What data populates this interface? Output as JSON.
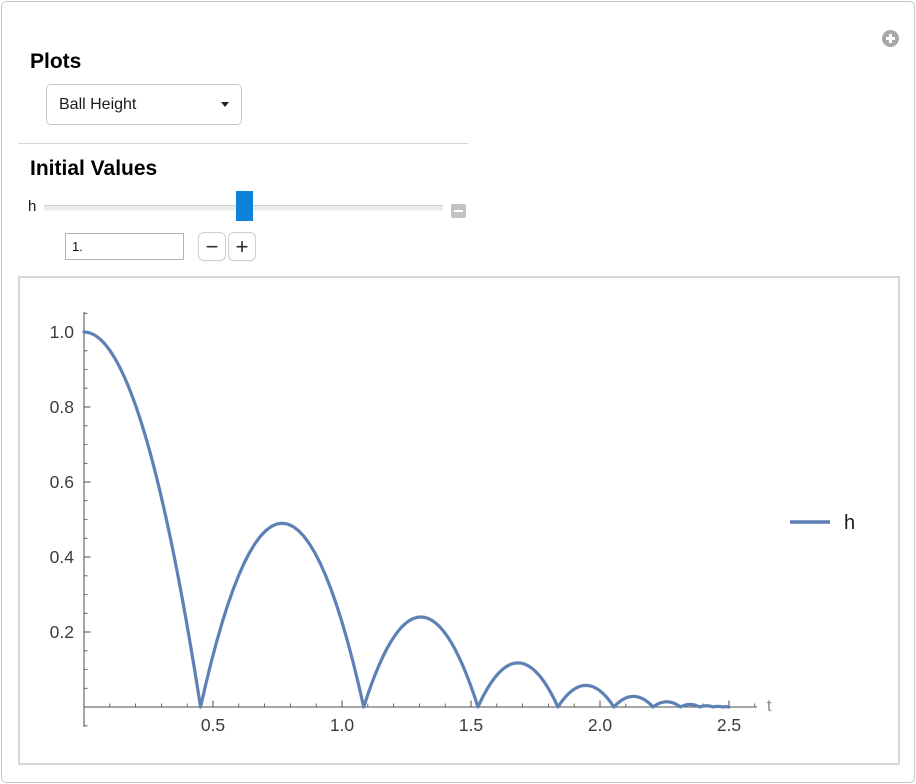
{
  "window": {
    "plus_icon": "plus-circle-options"
  },
  "plots_section": {
    "title": "Plots",
    "dropdown_value": "Ball Height"
  },
  "initial_values_section": {
    "title": "Initial Values",
    "slider": {
      "label": "h",
      "thumb_color": "#0c82d8",
      "collapse_icon": "minus"
    },
    "field_value": "1.",
    "stepper": {
      "decrement_label": "−",
      "increment_label": "+"
    }
  },
  "chart_data": {
    "type": "line",
    "title": "",
    "xlabel": "t",
    "ylabel": "",
    "xlim": [
      0,
      2.6
    ],
    "ylim": [
      -0.05,
      1.05
    ],
    "x_ticks": [
      0.5,
      1.0,
      1.5,
      2.0,
      2.5
    ],
    "y_ticks": [
      0.2,
      0.4,
      0.6,
      0.8,
      1.0
    ],
    "x_minor_step": 0.1,
    "y_minor_step": 0.05,
    "grid": false,
    "legend_position": "right-outside",
    "colors": {
      "axis": "#4d4d4d",
      "tick_label": "#3c3c3c",
      "axis_label": "#8c8c8c",
      "series": "#5e81b5"
    },
    "series": [
      {
        "name": "h",
        "color": "#5e81b5",
        "description": "bouncing ball height: parabolic free-fall arcs with decaying peaks",
        "model": "bouncing-ball",
        "params": {
          "h0": 1.0,
          "g": 9.8,
          "restitution": 0.7,
          "t_end": 2.5
        },
        "bounce_times": [
          0.452,
          1.084,
          1.527,
          1.837,
          2.054,
          2.206,
          2.312,
          2.386,
          2.438,
          2.475
        ],
        "peak_heights": [
          1.0,
          0.49,
          0.24,
          0.118,
          0.058,
          0.028,
          0.014,
          0.007,
          0.003,
          0.002
        ]
      }
    ]
  }
}
